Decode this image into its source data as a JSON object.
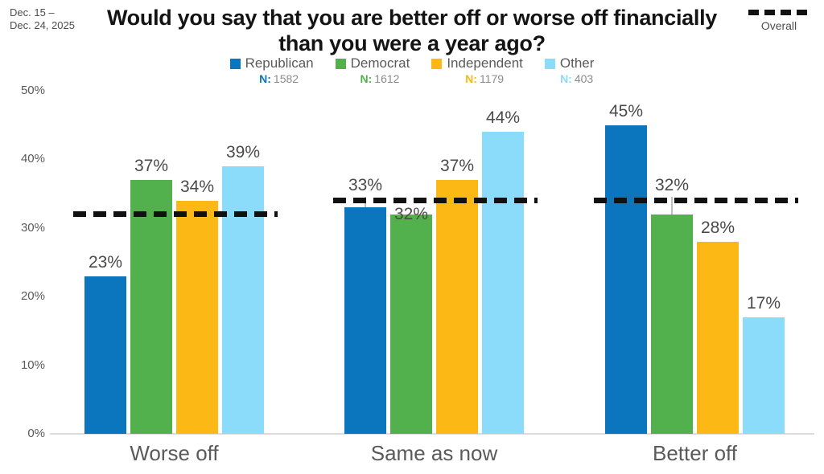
{
  "header": {
    "date_line1": "Dec. 15 –",
    "date_line2": "Dec. 24, 2025",
    "title_line1": "Would you say that you are better off or worse off financially",
    "title_line2": "than you were a year ago?",
    "overall_legend_label": "Overall"
  },
  "colors": {
    "republican": "#0b76be",
    "democrat": "#52b14c",
    "independent": "#fcb814",
    "other": "#8bdcfa",
    "overall_dashed_line": "#111111",
    "value_label_text": "#4a4a4a",
    "axis_text": "#5a5a5a",
    "title_text": "#141414"
  },
  "chart_data": {
    "type": "grouped_bar",
    "title": "Would you say that you are better off or worse off financially than you were a year ago?",
    "date_range": "Dec. 15 – Dec. 24, 2025",
    "categories": [
      "Worse off",
      "Same as now",
      "Better off"
    ],
    "series": [
      {
        "name": "Republican",
        "n": "1582",
        "color": "#0b76be",
        "values": [
          23,
          33,
          45
        ]
      },
      {
        "name": "Democrat",
        "n": "1612",
        "color": "#52b14c",
        "values": [
          37,
          32,
          32
        ]
      },
      {
        "name": "Independent",
        "n": "1179",
        "color": "#fcb814",
        "values": [
          34,
          37,
          28
        ]
      },
      {
        "name": "Other",
        "n": "403",
        "color": "#8bdcfa",
        "values": [
          39,
          44,
          17
        ]
      }
    ],
    "n_label": "N:",
    "overall": {
      "name": "Overall",
      "values": [
        32,
        34,
        34
      ],
      "style": "dashed-black"
    },
    "ylim": [
      0,
      50
    ],
    "yticks": [
      "0%",
      "10%",
      "20%",
      "30%",
      "40%",
      "50%"
    ],
    "grid": false,
    "legend_position": "top",
    "value_label_format": "{v}%",
    "label_adjust": {
      "1,0": "raise",
      "1,1": "tuck",
      "2,1": "raise"
    }
  }
}
